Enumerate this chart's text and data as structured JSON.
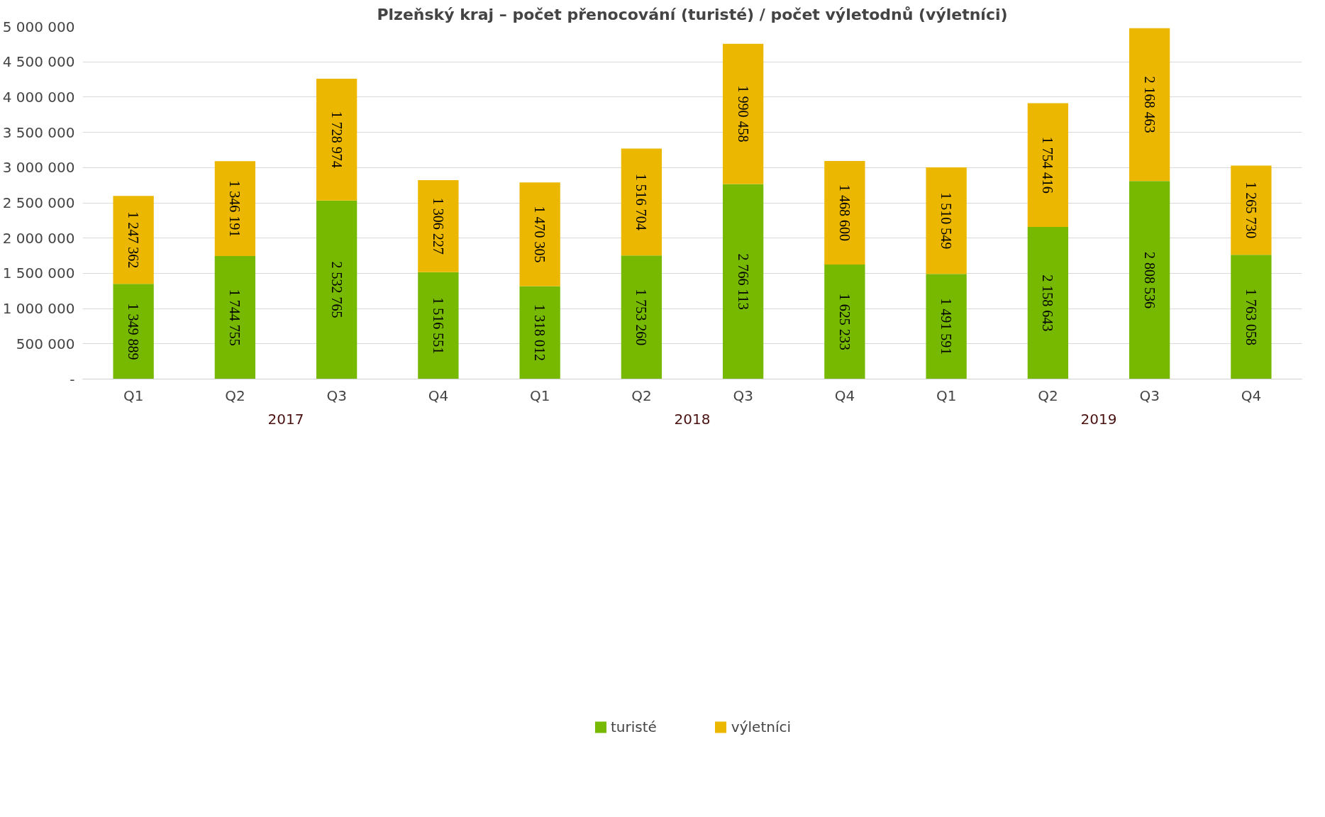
{
  "chart_data": {
    "type": "bar",
    "title": "Plzeňský kraj – počet přenocování (turisté) / počet výletodnů (výletníci)",
    "categories": [
      "Q1",
      "Q2",
      "Q3",
      "Q4",
      "Q1",
      "Q2",
      "Q3",
      "Q4",
      "Q1",
      "Q2",
      "Q3",
      "Q4"
    ],
    "stacked": true,
    "series": [
      {
        "name": "turisté",
        "color": "#76b900",
        "values": [
          1349889,
          1744755,
          2532765,
          1516551,
          1318012,
          1753260,
          2766113,
          1625233,
          1491591,
          2158643,
          2808536,
          1763058
        ]
      },
      {
        "name": "výletníci",
        "color": "#ebb700",
        "values": [
          1247362,
          1346191,
          1728974,
          1306227,
          1470305,
          1516704,
          1990458,
          1468600,
          1510549,
          1754416,
          2168463,
          1265730
        ]
      }
    ],
    "annotations": [
      "2017",
      "2018",
      "2019"
    ],
    "ylim": [
      0,
      5000000
    ],
    "yticks": [
      {
        "value": 0,
        "label": "-"
      },
      {
        "value": 500000,
        "label": "500 000"
      },
      {
        "value": 1000000,
        "label": "1 000 000"
      },
      {
        "value": 1500000,
        "label": "1 500 000"
      },
      {
        "value": 2000000,
        "label": "2 000 000"
      },
      {
        "value": 2500000,
        "label": "2 500 000"
      },
      {
        "value": 3000000,
        "label": "3 000 000"
      },
      {
        "value": 3500000,
        "label": "3 500 000"
      },
      {
        "value": 4000000,
        "label": "4 000 000"
      },
      {
        "value": 4500000,
        "label": "4 500 000"
      },
      {
        "value": 5000000,
        "label": "5 000 000"
      }
    ],
    "grid": "y",
    "data_labels": true,
    "legend": "bottom"
  }
}
